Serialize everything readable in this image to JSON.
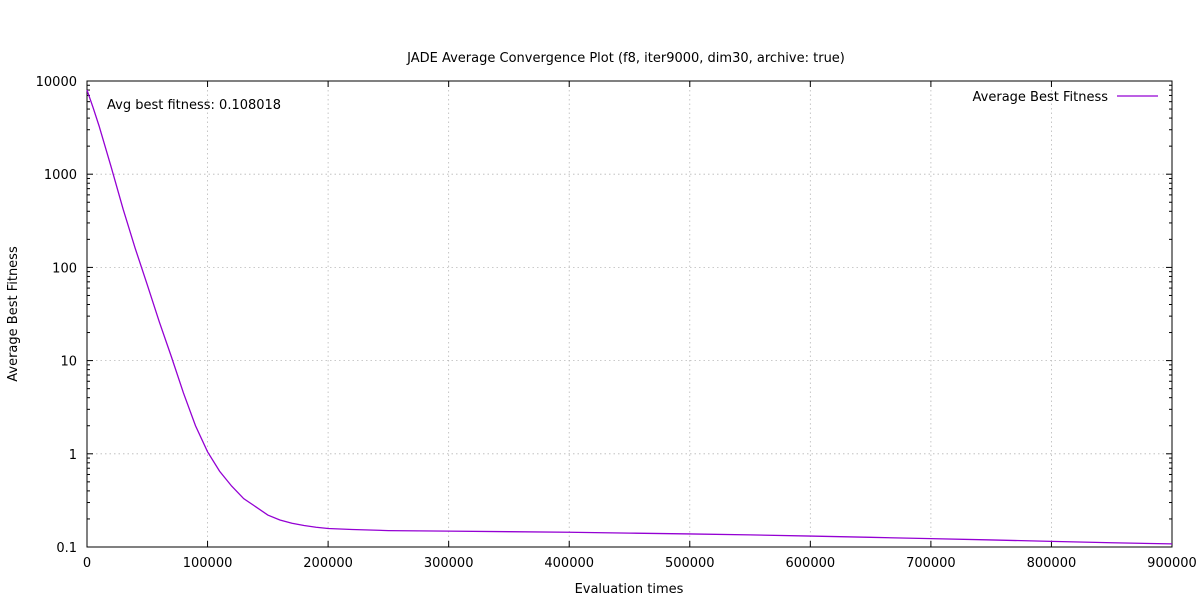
{
  "chart_data": {
    "type": "line",
    "title": "JADE Average Convergence Plot (f8, iter9000, dim30, archive: true)",
    "xlabel": "Evaluation times",
    "ylabel": "Average Best Fitness",
    "xlim": [
      0,
      900000
    ],
    "ylim": [
      0.1,
      10000
    ],
    "yscale": "log",
    "grid": true,
    "legend_position": "top-right",
    "x_ticks": [
      0,
      100000,
      200000,
      300000,
      400000,
      500000,
      600000,
      700000,
      800000,
      900000
    ],
    "x_tick_labels": [
      "0",
      "100000",
      "200000",
      "300000",
      "400000",
      "500000",
      "600000",
      "700000",
      "800000",
      "900000"
    ],
    "y_ticks": [
      0.1,
      1,
      10,
      100,
      1000,
      10000
    ],
    "y_tick_labels": [
      "0.1",
      "1",
      "10",
      "100",
      "1000",
      "10000"
    ],
    "annotation": "Avg best fitness: 0.108018",
    "series": [
      {
        "name": "Average Best Fitness",
        "color": "#9400d3",
        "x": [
          0,
          5000,
          10000,
          20000,
          30000,
          40000,
          50000,
          60000,
          70000,
          80000,
          90000,
          100000,
          110000,
          120000,
          130000,
          140000,
          150000,
          160000,
          170000,
          180000,
          190000,
          200000,
          220000,
          250000,
          300000,
          350000,
          400000,
          450000,
          500000,
          550000,
          600000,
          650000,
          700000,
          750000,
          800000,
          850000,
          900000
        ],
        "y": [
          8000,
          5200,
          3300,
          1200,
          420,
          160,
          65,
          26,
          11,
          4.5,
          2.0,
          1.05,
          0.65,
          0.45,
          0.33,
          0.27,
          0.22,
          0.195,
          0.18,
          0.17,
          0.163,
          0.158,
          0.154,
          0.15,
          0.148,
          0.146,
          0.144,
          0.141,
          0.138,
          0.135,
          0.131,
          0.127,
          0.123,
          0.119,
          0.115,
          0.111,
          0.108
        ]
      }
    ]
  }
}
